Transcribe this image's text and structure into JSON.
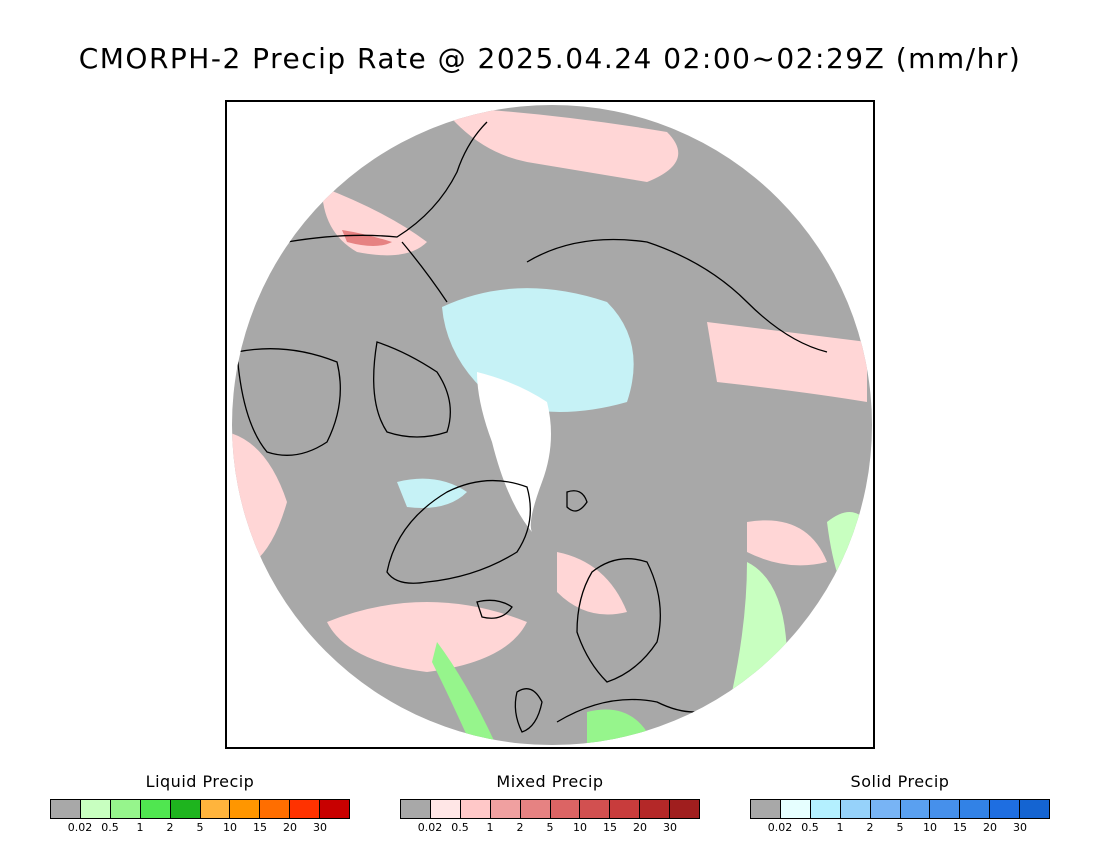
{
  "title": "CMORPH-2 Precip Rate @ 2025.04.24 02:00~02:29Z (mm/hr)",
  "map": {
    "projection": "north-polar-stereographic",
    "land_outline_color": "#000000",
    "background_no_precip_color": "#a8a8a8",
    "outside_color": "#ffffff"
  },
  "legends": [
    {
      "title": "Liquid Precip",
      "colors": [
        "#a8a8a8",
        "#c8ffc0",
        "#96f58c",
        "#50e650",
        "#1eb41e",
        "#ffb43c",
        "#ff9600",
        "#ff6e00",
        "#ff3200",
        "#c80000"
      ],
      "ticks": [
        "0.02",
        "0.5",
        "1",
        "2",
        "5",
        "10",
        "15",
        "20",
        "30"
      ]
    },
    {
      "title": "Mixed Precip",
      "colors": [
        "#a8a8a8",
        "#ffe6e6",
        "#ffc8c8",
        "#f0a0a0",
        "#e68282",
        "#dc6464",
        "#d25050",
        "#c83c3c",
        "#b42828",
        "#a01e1e"
      ],
      "ticks": [
        "0.02",
        "0.5",
        "1",
        "2",
        "5",
        "10",
        "15",
        "20",
        "30"
      ]
    },
    {
      "title": "Solid Precip",
      "colors": [
        "#a8a8a8",
        "#e6ffff",
        "#b4f0ff",
        "#96d2fa",
        "#78b4f5",
        "#5aa0f0",
        "#4690eb",
        "#3282e6",
        "#1e6ee1",
        "#1464d2"
      ],
      "ticks": [
        "0.02",
        "0.5",
        "1",
        "2",
        "5",
        "10",
        "15",
        "20",
        "30"
      ]
    }
  ]
}
